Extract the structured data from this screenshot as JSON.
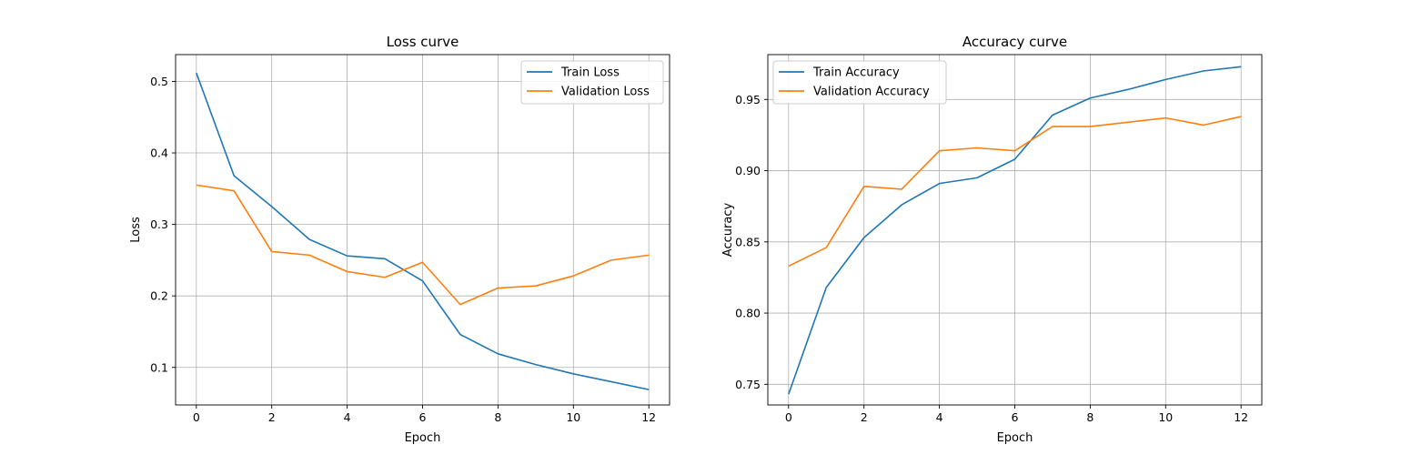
{
  "chart_data": [
    {
      "type": "line",
      "title": "Loss curve",
      "xlabel": "Epoch",
      "ylabel": "Loss",
      "xlim": [
        -0.55,
        12.55
      ],
      "ylim": [
        0.0475,
        0.5375
      ],
      "xticks": [
        0,
        2,
        4,
        6,
        8,
        10,
        12
      ],
      "yticks": [
        0.1,
        0.2,
        0.3,
        0.4,
        0.5
      ],
      "xtick_labels": [
        "0",
        "2",
        "4",
        "6",
        "8",
        "10",
        "12"
      ],
      "ytick_labels": [
        "0.1",
        "0.2",
        "0.3",
        "0.4",
        "0.5"
      ],
      "grid": true,
      "legend": "upper right",
      "x": [
        0,
        1,
        2,
        3,
        4,
        5,
        6,
        7,
        8,
        9,
        10,
        11,
        12
      ],
      "series": [
        {
          "name": "Train Loss",
          "color": "#1f77b4",
          "values": [
            0.512,
            0.368,
            0.325,
            0.279,
            0.256,
            0.252,
            0.221,
            0.146,
            0.119,
            0.104,
            0.091,
            0.08,
            0.069
          ]
        },
        {
          "name": "Validation Loss",
          "color": "#ff7f0e",
          "values": [
            0.355,
            0.347,
            0.262,
            0.257,
            0.234,
            0.226,
            0.247,
            0.188,
            0.211,
            0.214,
            0.228,
            0.25,
            0.257
          ]
        }
      ]
    },
    {
      "type": "line",
      "title": "Accuracy curve",
      "xlabel": "Epoch",
      "ylabel": "Accuracy",
      "xlim": [
        -0.55,
        12.55
      ],
      "ylim": [
        0.7355,
        0.9815
      ],
      "xticks": [
        0,
        2,
        4,
        6,
        8,
        10,
        12
      ],
      "yticks": [
        0.75,
        0.8,
        0.85,
        0.9,
        0.95
      ],
      "xtick_labels": [
        "0",
        "2",
        "4",
        "6",
        "8",
        "10",
        "12"
      ],
      "ytick_labels": [
        "0.75",
        "0.80",
        "0.85",
        "0.90",
        "0.95"
      ],
      "grid": true,
      "legend": "upper left",
      "x": [
        0,
        1,
        2,
        3,
        4,
        5,
        6,
        7,
        8,
        9,
        10,
        11,
        12
      ],
      "series": [
        {
          "name": "Train Accuracy",
          "color": "#1f77b4",
          "values": [
            0.743,
            0.818,
            0.853,
            0.876,
            0.891,
            0.895,
            0.908,
            0.939,
            0.951,
            0.957,
            0.964,
            0.97,
            0.973
          ]
        },
        {
          "name": "Validation Accuracy",
          "color": "#ff7f0e",
          "values": [
            0.833,
            0.846,
            0.889,
            0.887,
            0.914,
            0.916,
            0.914,
            0.931,
            0.931,
            0.934,
            0.937,
            0.932,
            0.938
          ]
        }
      ]
    }
  ]
}
